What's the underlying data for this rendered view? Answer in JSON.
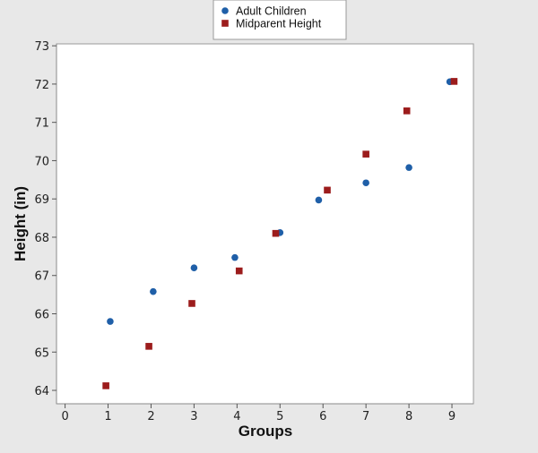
{
  "chart_data": {
    "type": "scatter",
    "xlabel": "Groups",
    "ylabel": "Height (in)",
    "xlim": [
      -0.2,
      9.5
    ],
    "ylim": [
      63.65,
      73.05
    ],
    "xticks": [
      "0",
      "1",
      "2",
      "3",
      "4",
      "5",
      "6",
      "7",
      "8",
      "9"
    ],
    "yticks": [
      "64",
      "65",
      "66",
      "67",
      "68",
      "69",
      "70",
      "71",
      "72",
      "73"
    ],
    "grid": false,
    "legend_position": "top",
    "series": [
      {
        "name": "Adult Children",
        "marker": "circle",
        "color": "#1f5fa8",
        "x": [
          1.05,
          2.05,
          3.0,
          3.95,
          5.0,
          5.9,
          7.0,
          8.0,
          8.95
        ],
        "y": [
          65.8,
          66.58,
          67.2,
          67.47,
          68.12,
          68.97,
          69.42,
          69.82,
          72.06
        ]
      },
      {
        "name": "Midparent Height",
        "marker": "square",
        "color": "#9c1c1c",
        "x": [
          0.95,
          1.95,
          2.95,
          4.05,
          4.9,
          6.1,
          7.0,
          7.95,
          9.05
        ],
        "y": [
          64.12,
          65.15,
          66.27,
          67.12,
          68.1,
          69.23,
          70.17,
          71.3,
          72.07
        ]
      }
    ]
  }
}
